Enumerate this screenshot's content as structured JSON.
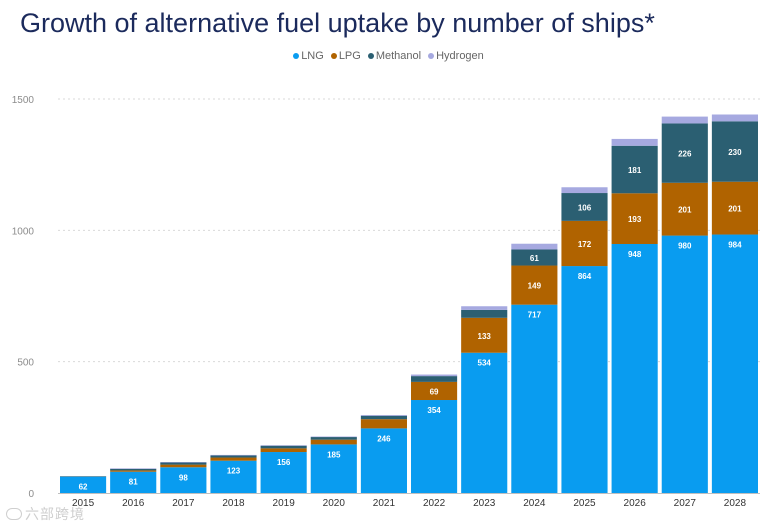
{
  "chart_data": {
    "type": "bar",
    "stacked": true,
    "title": "Growth of alternative fuel uptake by number of ships*",
    "xlabel": "",
    "ylabel": "",
    "ylim": [
      0,
      1500
    ],
    "yticks": [
      0,
      500,
      1000,
      1500
    ],
    "grid": true,
    "legend_position": "top-center",
    "categories": [
      "2015",
      "2016",
      "2017",
      "2018",
      "2019",
      "2020",
      "2021",
      "2022",
      "2023",
      "2024",
      "2025",
      "2026",
      "2027",
      "2028"
    ],
    "series": [
      {
        "name": "LNG",
        "color": "#099cf0",
        "values": [
          62,
          81,
          98,
          123,
          156,
          185,
          246,
          354,
          534,
          717,
          864,
          948,
          980,
          984
        ],
        "labels": [
          "62",
          "81",
          "98",
          "123",
          "156",
          "185",
          "246",
          "354",
          "534",
          "717",
          "864",
          "948",
          "980",
          "984"
        ]
      },
      {
        "name": "LPG",
        "color": "#b06300",
        "values": [
          0,
          5,
          10,
          12,
          14,
          18,
          35,
          69,
          133,
          149,
          172,
          193,
          201,
          201
        ],
        "labels": [
          "",
          "",
          "",
          "",
          "",
          "",
          "",
          "69",
          "133",
          "149",
          "172",
          "193",
          "201",
          "201"
        ]
      },
      {
        "name": "Methanol",
        "color": "#2b5f72",
        "values": [
          2,
          6,
          8,
          8,
          10,
          10,
          13,
          22,
          30,
          61,
          106,
          181,
          226,
          230
        ],
        "labels": [
          "",
          "",
          "",
          "",
          "",
          "",
          "",
          "",
          "",
          "61",
          "106",
          "181",
          "226",
          "230"
        ]
      },
      {
        "name": "Hydrogen",
        "color": "#a6a9e0",
        "values": [
          0,
          2,
          2,
          2,
          2,
          2,
          3,
          6,
          14,
          22,
          22,
          26,
          26,
          26
        ],
        "labels": [
          "",
          "",
          "",
          "",
          "",
          "",
          "",
          "",
          "",
          "",
          "",
          "",
          "",
          ""
        ]
      }
    ]
  },
  "watermark": "六部跨境"
}
